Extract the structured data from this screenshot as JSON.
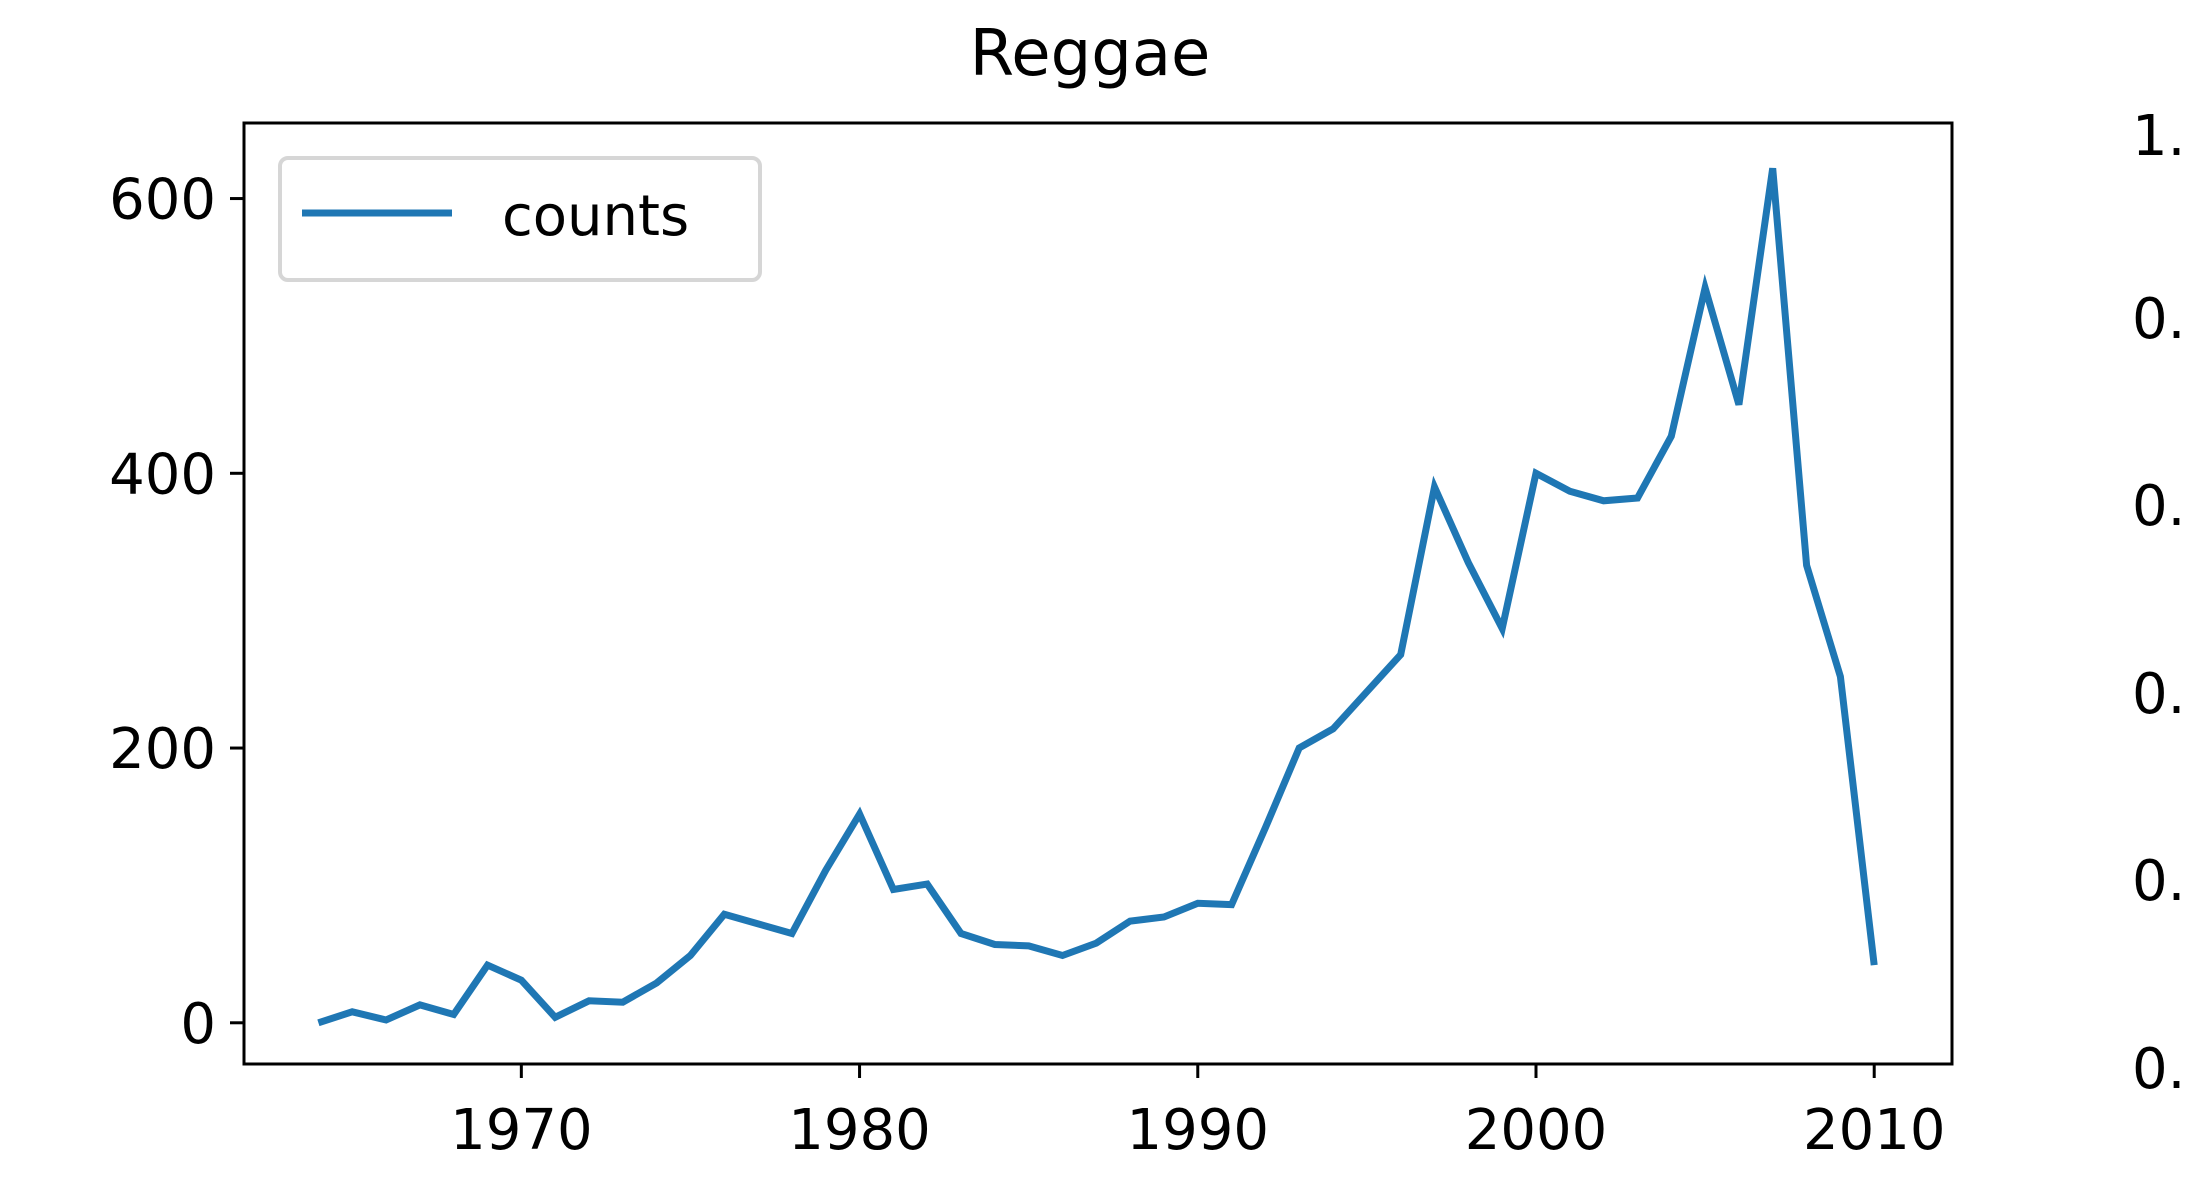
{
  "chart_data": {
    "type": "line",
    "title": "Reggae",
    "xlabel": "",
    "ylabel": "",
    "xlim": [
      1961.8,
      2012.3
    ],
    "ylim": [
      -30,
      655
    ],
    "x_ticks": [
      "1970",
      "1980",
      "1990",
      "2000",
      "2010"
    ],
    "y_ticks": [
      "0",
      "200",
      "400",
      "600"
    ],
    "grid": false,
    "legend": {
      "position": "top-left",
      "entries": [
        "counts"
      ]
    },
    "series": [
      {
        "name": "counts",
        "color": "#1f77b4",
        "x": [
          1964,
          1965,
          1966,
          1967,
          1968,
          1969,
          1970,
          1971,
          1972,
          1973,
          1974,
          1975,
          1976,
          1977,
          1978,
          1979,
          1980,
          1981,
          1982,
          1983,
          1984,
          1985,
          1986,
          1987,
          1988,
          1989,
          1990,
          1991,
          1992,
          1993,
          1994,
          1995,
          1996,
          1997,
          1998,
          1999,
          2000,
          2001,
          2002,
          2003,
          2004,
          2005,
          2006,
          2007,
          2008,
          2009,
          2010
        ],
        "y": [
          0,
          8,
          2,
          13,
          6,
          42,
          31,
          4,
          16,
          15,
          29,
          49,
          79,
          72,
          65,
          111,
          152,
          97,
          101,
          65,
          57,
          56,
          49,
          58,
          74,
          77,
          87,
          86,
          142,
          200,
          214,
          241,
          268,
          390,
          335,
          287,
          400,
          387,
          380,
          382,
          427,
          535,
          450,
          622,
          333,
          252,
          42
        ]
      }
    ]
  },
  "right_panel": {
    "tick_labels": [
      "1.",
      "0.",
      "0.",
      "0.",
      "0.",
      "0."
    ]
  }
}
